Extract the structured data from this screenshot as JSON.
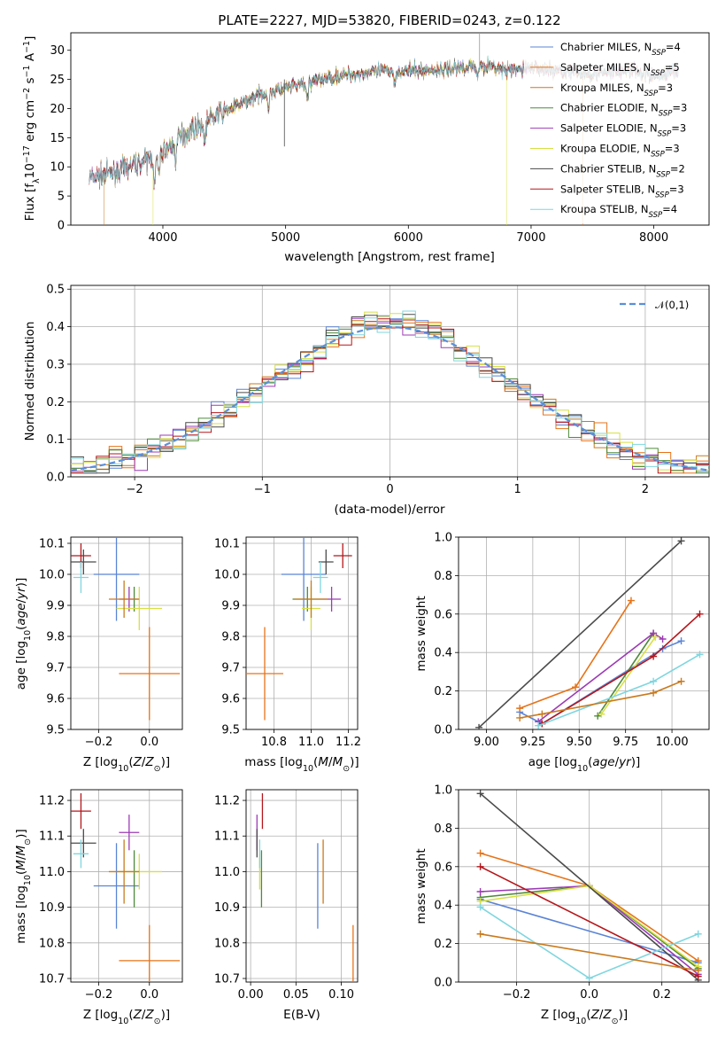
{
  "title": "PLATE=2227, MJD=53820, FIBERID=0243, z=0.122",
  "colors": {
    "Chabrier MILES": "#5b84d6",
    "Salpeter MILES": "#e67319",
    "Kroupa MILES": "#c97a1e",
    "Chabrier ELODIE": "#4e8a3a",
    "Salpeter ELODIE": "#9c3bb5",
    "Kroupa ELODIE": "#d7e043",
    "Chabrier STELIB": "#4a4a4a",
    "Salpeter STELIB": "#b5161b",
    "Kroupa STELIB": "#7fd6df"
  },
  "chart_data": [
    {
      "type": "line",
      "id": "spectrum",
      "title": "PLATE=2227, MJD=53820, FIBERID=0243, z=0.122",
      "xlabel": "wavelength [Angstrom, rest frame]",
      "ylabel": "Flux [f_λ10^-17 erg cm^-2 s^-1 A^-1]",
      "xlim": [
        3250,
        8450
      ],
      "ylim": [
        0,
        33
      ],
      "xticks": [
        4000,
        5000,
        6000,
        7000,
        8000
      ],
      "yticks": [
        0,
        5,
        10,
        15,
        20,
        25,
        30
      ],
      "grid": false,
      "legend": "top-right",
      "series": [
        {
          "name": "Chabrier MILES, N_SSP=4",
          "label": "Chabrier MILES, N",
          "sub": "SSP",
          "suffix": "=4"
        },
        {
          "name": "Salpeter MILES, N_SSP=5",
          "label": "Salpeter MILES, N",
          "sub": "SSP",
          "suffix": "=5"
        },
        {
          "name": "Kroupa MILES, N_SSP=3",
          "label": "Kroupa MILES, N",
          "sub": "SSP",
          "suffix": "=3"
        },
        {
          "name": "Chabrier ELODIE, N_SSP=3",
          "label": "Chabrier ELODIE, N",
          "sub": "SSP",
          "suffix": "=3"
        },
        {
          "name": "Salpeter ELODIE, N_SSP=3",
          "label": "Salpeter ELODIE, N",
          "sub": "SSP",
          "suffix": "=3"
        },
        {
          "name": "Kroupa ELODIE, N_SSP=3",
          "label": "Kroupa ELODIE, N",
          "sub": "SSP",
          "suffix": "=3"
        },
        {
          "name": "Chabrier STELIB, N_SSP=2",
          "label": "Chabrier STELIB, N",
          "sub": "SSP",
          "suffix": "=2"
        },
        {
          "name": "Salpeter STELIB, N_SSP=3",
          "label": "Salpeter STELIB, N",
          "sub": "SSP",
          "suffix": "=3"
        },
        {
          "name": "Kroupa STELIB, N_SSP=4",
          "label": "Kroupa STELIB, N",
          "sub": "SSP",
          "suffix": "=4"
        }
      ],
      "continuum": {
        "x": [
          3400,
          3600,
          3800,
          4000,
          4200,
          4400,
          4600,
          4800,
          5000,
          5200,
          5400,
          5600,
          5800,
          6000,
          6200,
          6400,
          6600,
          6800,
          7000,
          7200,
          7400,
          7600,
          7800,
          8000,
          8200
        ],
        "y": [
          8.0,
          9.0,
          10.5,
          12.5,
          16.0,
          18.5,
          20.5,
          22.5,
          23.5,
          24.5,
          25.5,
          26.0,
          26.5,
          26.5,
          26.5,
          27.0,
          27.5,
          26.5,
          27.0,
          26.5,
          26.0,
          26.0,
          26.5,
          25.5,
          26.5
        ]
      }
    },
    {
      "type": "bar",
      "id": "residuals",
      "xlabel": "(data-model)/error",
      "ylabel": "Normed distribution",
      "xlim": [
        -2.5,
        2.5
      ],
      "ylim": [
        0,
        0.51
      ],
      "xticks": [
        -2,
        -1,
        0,
        1,
        2
      ],
      "yticks": [
        0.0,
        0.1,
        0.2,
        0.3,
        0.4,
        0.5
      ],
      "grid": true,
      "legend": "top-right",
      "reference": {
        "name": "𝒩(0,1)",
        "mean": 0,
        "sigma": 1
      },
      "bin_width": 0.1
    },
    {
      "type": "scatter",
      "id": "age-vs-Z",
      "xlabel": "Z [log10(Z/Z⊙)]",
      "ylabel": "age  [log10(age/yr)]",
      "xlim": [
        -0.31,
        0.13
      ],
      "ylim": [
        9.5,
        10.12
      ],
      "xticks": [
        -0.2,
        0.0
      ],
      "yticks": [
        9.5,
        9.6,
        9.7,
        9.8,
        9.9,
        10.0,
        10.1
      ],
      "grid": true
    },
    {
      "type": "scatter",
      "id": "age-vs-mass",
      "xlabel": "mass [log10(M/M⊙)]",
      "ylabel": "",
      "xlim": [
        10.65,
        11.25
      ],
      "ylim": [
        9.5,
        10.12
      ],
      "xticks": [
        10.8,
        11.0,
        11.2
      ],
      "yticks": [
        9.5,
        9.6,
        9.7,
        9.8,
        9.9,
        10.0,
        10.1
      ],
      "grid": true
    },
    {
      "type": "line",
      "id": "weight-vs-age",
      "xlabel": "age  [log10(age/yr)]",
      "ylabel": "mass weight",
      "xlim": [
        8.85,
        10.2
      ],
      "ylim": [
        0,
        1.0
      ],
      "xticks": [
        9.0,
        9.25,
        9.5,
        9.75,
        10.0
      ],
      "yticks": [
        0.0,
        0.2,
        0.4,
        0.6,
        0.8,
        1.0
      ],
      "grid": true
    },
    {
      "type": "scatter",
      "id": "mass-vs-Z",
      "xlabel": "Z [log10(Z/Z⊙)]",
      "ylabel": "mass [log10(M/M⊙)]",
      "xlim": [
        -0.31,
        0.13
      ],
      "ylim": [
        10.69,
        11.23
      ],
      "xticks": [
        -0.2,
        0.0
      ],
      "yticks": [
        10.7,
        10.8,
        10.9,
        11.0,
        11.1,
        11.2
      ],
      "grid": true
    },
    {
      "type": "scatter",
      "id": "mass-vs-ebv",
      "xlabel": "E(B-V)",
      "ylabel": "",
      "xlim": [
        -0.005,
        0.118
      ],
      "ylim": [
        10.69,
        11.23
      ],
      "xticks": [
        0.0,
        0.05,
        0.1
      ],
      "yticks": [
        10.7,
        10.8,
        10.9,
        11.0,
        11.1,
        11.2
      ],
      "grid": true
    },
    {
      "type": "line",
      "id": "weight-vs-Z",
      "xlabel": "Z [log10(Z/Z⊙)]",
      "ylabel": "mass weight",
      "xlim": [
        -0.36,
        0.33
      ],
      "ylim": [
        0,
        1.0
      ],
      "xticks": [
        -0.2,
        0.0,
        0.2
      ],
      "yticks": [
        0.0,
        0.2,
        0.4,
        0.6,
        0.8,
        1.0
      ],
      "grid": true
    }
  ],
  "fits": [
    {
      "name": "Chabrier MILES",
      "Z": -0.13,
      "Zerr": 0.09,
      "age": 10.0,
      "ageErr": 0.15,
      "mass": 10.96,
      "massErr": 0.12,
      "ebv": 0.074,
      "ebvErr": 0.0,
      "age_w": [
        [
          9.18,
          0.09
        ],
        [
          9.3,
          0.03
        ],
        [
          9.95,
          0.42
        ],
        [
          10.05,
          0.46
        ]
      ],
      "Z_w": [
        [
          -0.3,
          0.43
        ],
        [
          0.3,
          0.1
        ]
      ]
    },
    {
      "name": "Salpeter MILES",
      "Z": 0.0,
      "Zerr": 0.12,
      "age": 9.68,
      "ageErr": 0.15,
      "mass": 10.75,
      "massErr": 0.1,
      "ebv": 0.113,
      "ebvErr": 0.0,
      "age_w": [
        [
          9.18,
          0.11
        ],
        [
          9.48,
          0.22
        ],
        [
          9.78,
          0.67
        ]
      ],
      "Z_w": [
        [
          -0.3,
          0.67
        ],
        [
          0.0,
          0.5
        ],
        [
          0.3,
          0.11
        ]
      ]
    },
    {
      "name": "Chabrier ELODIE",
      "Z": -0.06,
      "Zerr": 0.0,
      "age": 9.92,
      "ageErr": 0.04,
      "mass": 10.98,
      "massErr": 0.08,
      "ebv": 0.012,
      "ebvErr": 0.0,
      "age_w": [
        [
          9.6,
          0.07
        ],
        [
          9.9,
          0.5
        ]
      ],
      "Z_w": [
        [
          -0.3,
          0.44
        ],
        [
          0.0,
          0.5
        ],
        [
          0.3,
          0.07
        ]
      ]
    },
    {
      "name": "Salpeter ELODIE",
      "Z": -0.08,
      "Zerr": 0.04,
      "age": 9.92,
      "ageErr": 0.04,
      "mass": 11.11,
      "massErr": 0.05,
      "ebv": 0.007,
      "ebvErr": 0.0,
      "age_w": [
        [
          9.28,
          0.04
        ],
        [
          9.9,
          0.5
        ],
        [
          9.95,
          0.47
        ]
      ],
      "Z_w": [
        [
          -0.3,
          0.47
        ],
        [
          0.0,
          0.5
        ],
        [
          0.3,
          0.04
        ]
      ]
    },
    {
      "name": "Kroupa ELODIE",
      "Z": -0.04,
      "Zerr": 0.09,
      "age": 9.89,
      "ageErr": 0.07,
      "mass": 11.0,
      "massErr": 0.05,
      "ebv": 0.01,
      "ebvErr": 0.0,
      "age_w": [
        [
          9.62,
          0.08
        ],
        [
          9.91,
          0.48
        ]
      ],
      "Z_w": [
        [
          -0.3,
          0.42
        ],
        [
          0.0,
          0.5
        ],
        [
          0.3,
          0.08
        ]
      ]
    },
    {
      "name": "Chabrier STELIB",
      "Z": -0.26,
      "Zerr": 0.05,
      "age": 10.04,
      "ageErr": 0.04,
      "mass": 11.08,
      "massErr": 0.04,
      "ebv": 0.007,
      "ebvErr": 0.0,
      "age_w": [
        [
          8.96,
          0.01
        ],
        [
          10.05,
          0.98
        ]
      ],
      "Z_w": [
        [
          -0.3,
          0.98
        ],
        [
          0.3,
          0.01
        ]
      ]
    },
    {
      "name": "Salpeter STELIB",
      "Z": -0.27,
      "Zerr": 0.04,
      "age": 10.06,
      "ageErr": 0.04,
      "mass": 11.17,
      "massErr": 0.05,
      "ebv": 0.013,
      "ebvErr": 0.0,
      "age_w": [
        [
          9.3,
          0.03
        ],
        [
          9.9,
          0.38
        ],
        [
          10.15,
          0.6
        ]
      ],
      "Z_w": [
        [
          -0.3,
          0.6
        ],
        [
          0.3,
          0.03
        ]
      ]
    },
    {
      "name": "Kroupa STELIB",
      "Z": -0.27,
      "Zerr": 0.03,
      "age": 9.99,
      "ageErr": 0.05,
      "mass": 11.05,
      "massErr": 0.04,
      "ebv": 0.01,
      "ebvErr": 0.0,
      "age_w": [
        [
          9.28,
          0.02
        ],
        [
          9.9,
          0.25
        ],
        [
          10.15,
          0.39
        ]
      ],
      "Z_w": [
        [
          -0.3,
          0.39
        ],
        [
          0.0,
          0.02
        ],
        [
          0.3,
          0.25
        ]
      ]
    },
    {
      "name": "Kroupa MILES",
      "Z": -0.1,
      "Zerr": 0.06,
      "age": 9.92,
      "ageErr": 0.06,
      "mass": 11.0,
      "massErr": 0.09,
      "ebv": 0.08,
      "ebvErr": 0.0,
      "age_w": [
        [
          9.18,
          0.06
        ],
        [
          9.3,
          0.08
        ],
        [
          9.9,
          0.19
        ],
        [
          10.05,
          0.25
        ]
      ],
      "Z_w": [
        [
          -0.3,
          0.25
        ],
        [
          0.3,
          0.06
        ]
      ]
    }
  ]
}
